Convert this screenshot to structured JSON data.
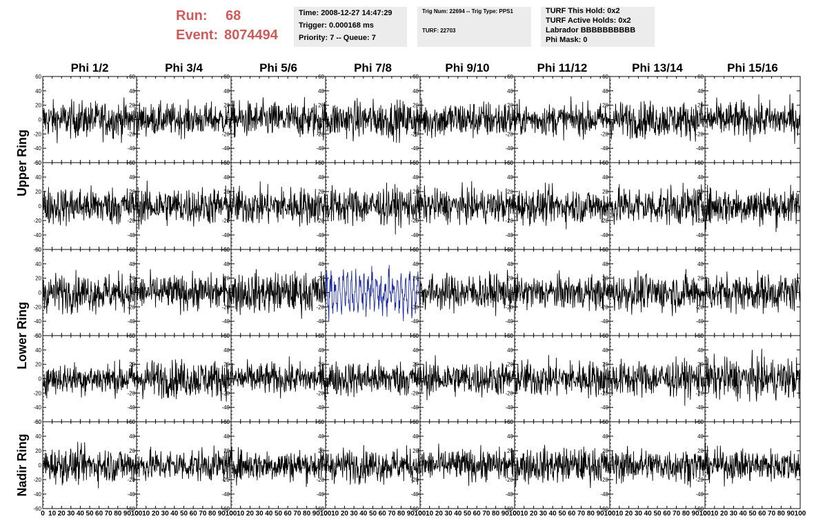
{
  "header": {
    "run_label": "Run:",
    "run_value": "68",
    "event_label": "Event:",
    "event_value": "8074494",
    "time": "Time: 2008-12-27 14:47:29",
    "trigger": "Trigger: 0.000168 ms",
    "priority": "Priority: 7 -- Queue: 7",
    "trig_info": "Trig Num: 22694 -- Trig Type: PPS1",
    "turf": "TURF: 22703",
    "turf_hold": "TURF This Hold: 0x2",
    "turf_active": "TURF Active Holds: 0x2",
    "labrador": "Labrador BBBBBBBBBB",
    "phi_mask": "Phi Mask: 0"
  },
  "colors": {
    "run_text": "#d05a5a",
    "info_bg": "#ececec",
    "trace": "#000000",
    "highlight_trace": "#1c2aa0"
  },
  "chart_data": {
    "type": "line",
    "columns": [
      "Phi 1/2",
      "Phi 3/4",
      "Phi 5/6",
      "Phi 7/8",
      "Phi 9/10",
      "Phi 11/12",
      "Phi 13/14",
      "Phi 15/16"
    ],
    "ring_labels": [
      "Upper Ring",
      "Lower Ring",
      "Nadir Ring"
    ],
    "rows_per_ring": [
      2,
      2,
      1
    ],
    "xlim": [
      0,
      100
    ],
    "ylim": [
      -60,
      60
    ],
    "y_ticks": [
      60,
      40,
      20,
      0,
      -20,
      -40,
      -60
    ],
    "x_tick_labels": [
      "0",
      "10",
      "20",
      "30",
      "40",
      "50",
      "60",
      "70",
      "80",
      "90",
      "100"
    ],
    "panels_grid": "5 rows x 8 columns",
    "typical_amplitude": 25,
    "highlighted_panel": {
      "row": 3,
      "col": 4,
      "amplitude": 28
    },
    "series": [
      {
        "row": 1,
        "col": 1,
        "amplitude": 25
      },
      {
        "row": 1,
        "col": 2,
        "amplitude": 22
      },
      {
        "row": 1,
        "col": 3,
        "amplitude": 25
      },
      {
        "row": 1,
        "col": 4,
        "amplitude": 26
      },
      {
        "row": 1,
        "col": 5,
        "amplitude": 26
      },
      {
        "row": 1,
        "col": 6,
        "amplitude": 22
      },
      {
        "row": 1,
        "col": 7,
        "amplitude": 25
      },
      {
        "row": 1,
        "col": 8,
        "amplitude": 25
      },
      {
        "row": 2,
        "col": 1,
        "amplitude": 26
      },
      {
        "row": 2,
        "col": 2,
        "amplitude": 26
      },
      {
        "row": 2,
        "col": 3,
        "amplitude": 26
      },
      {
        "row": 2,
        "col": 4,
        "amplitude": 26
      },
      {
        "row": 2,
        "col": 5,
        "amplitude": 23
      },
      {
        "row": 2,
        "col": 6,
        "amplitude": 24
      },
      {
        "row": 2,
        "col": 7,
        "amplitude": 26
      },
      {
        "row": 2,
        "col": 8,
        "amplitude": 26
      },
      {
        "row": 3,
        "col": 1,
        "amplitude": 26
      },
      {
        "row": 3,
        "col": 2,
        "amplitude": 24
      },
      {
        "row": 3,
        "col": 3,
        "amplitude": 28
      },
      {
        "row": 3,
        "col": 4,
        "amplitude": 28
      },
      {
        "row": 3,
        "col": 5,
        "amplitude": 25
      },
      {
        "row": 3,
        "col": 6,
        "amplitude": 23
      },
      {
        "row": 3,
        "col": 7,
        "amplitude": 26
      },
      {
        "row": 3,
        "col": 8,
        "amplitude": 26
      },
      {
        "row": 4,
        "col": 1,
        "amplitude": 22
      },
      {
        "row": 4,
        "col": 2,
        "amplitude": 26
      },
      {
        "row": 4,
        "col": 3,
        "amplitude": 22
      },
      {
        "row": 4,
        "col": 4,
        "amplitude": 24
      },
      {
        "row": 4,
        "col": 5,
        "amplitude": 24
      },
      {
        "row": 4,
        "col": 6,
        "amplitude": 25
      },
      {
        "row": 4,
        "col": 7,
        "amplitude": 25
      },
      {
        "row": 4,
        "col": 8,
        "amplitude": 28
      },
      {
        "row": 5,
        "col": 1,
        "amplitude": 24
      },
      {
        "row": 5,
        "col": 2,
        "amplitude": 22
      },
      {
        "row": 5,
        "col": 3,
        "amplitude": 22
      },
      {
        "row": 5,
        "col": 4,
        "amplitude": 23
      },
      {
        "row": 5,
        "col": 5,
        "amplitude": 22
      },
      {
        "row": 5,
        "col": 6,
        "amplitude": 24
      },
      {
        "row": 5,
        "col": 7,
        "amplitude": 23
      },
      {
        "row": 5,
        "col": 8,
        "amplitude": 22
      }
    ]
  }
}
